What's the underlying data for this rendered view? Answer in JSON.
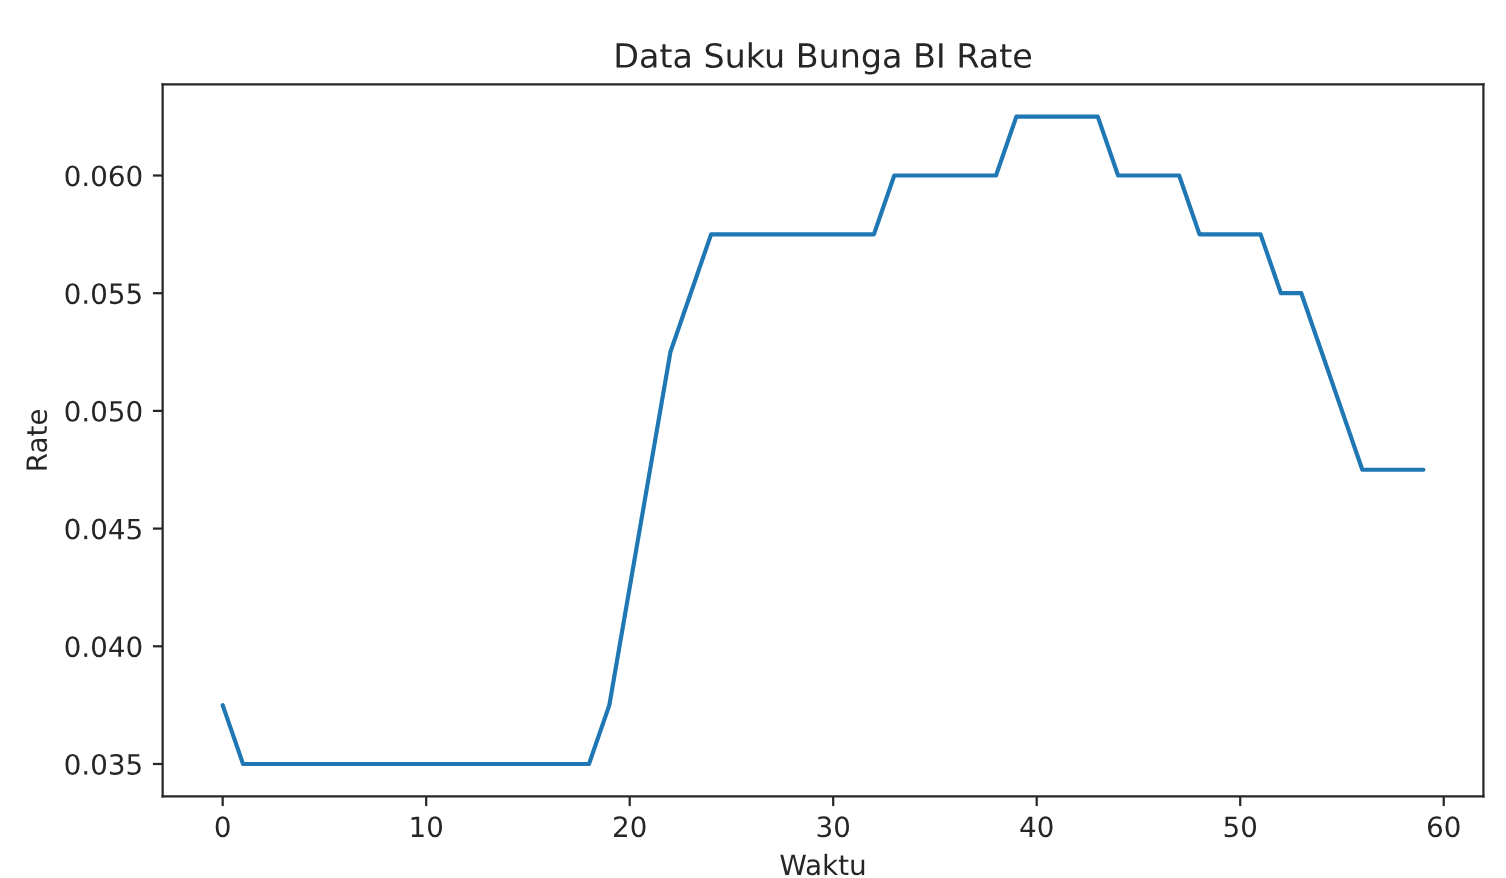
{
  "chart_data": {
    "type": "line",
    "title": "Data Suku Bunga BI Rate",
    "xlabel": "Waktu",
    "ylabel": "Rate",
    "x": [
      0,
      1,
      2,
      3,
      4,
      5,
      6,
      7,
      8,
      9,
      10,
      11,
      12,
      13,
      14,
      15,
      16,
      17,
      18,
      19,
      20,
      21,
      22,
      23,
      24,
      25,
      26,
      27,
      28,
      29,
      30,
      31,
      32,
      33,
      34,
      35,
      36,
      37,
      38,
      39,
      40,
      41,
      42,
      43,
      44,
      45,
      46,
      47,
      48,
      49,
      50,
      51,
      52,
      53,
      54,
      55,
      56,
      57,
      58,
      59
    ],
    "series": [
      {
        "color": "#1f77b4",
        "values": [
          0.0375,
          0.035,
          0.035,
          0.035,
          0.035,
          0.035,
          0.035,
          0.035,
          0.035,
          0.035,
          0.035,
          0.035,
          0.035,
          0.035,
          0.035,
          0.035,
          0.035,
          0.035,
          0.035,
          0.0375,
          0.0425,
          0.0475,
          0.0525,
          0.055,
          0.0575,
          0.0575,
          0.0575,
          0.0575,
          0.0575,
          0.0575,
          0.0575,
          0.0575,
          0.0575,
          0.06,
          0.06,
          0.06,
          0.06,
          0.06,
          0.06,
          0.0625,
          0.0625,
          0.0625,
          0.0625,
          0.0625,
          0.06,
          0.06,
          0.06,
          0.06,
          0.0575,
          0.0575,
          0.0575,
          0.0575,
          0.055,
          0.055,
          0.0525,
          0.05,
          0.0475,
          0.0475,
          0.0475,
          0.0475
        ]
      }
    ],
    "xlim": [
      -2.95,
      61.95
    ],
    "ylim": [
      0.033625,
      0.063875
    ],
    "xticks": [
      0,
      10,
      20,
      30,
      40,
      50,
      60
    ],
    "yticks": [
      0.035,
      {
        "value": 0.04,
        "label": "0.040"
      },
      0.045,
      {
        "value": 0.05,
        "label": "0.050"
      },
      0.055,
      {
        "value": 0.06,
        "label": "0.060"
      }
    ],
    "grid": false,
    "legend": false,
    "marker": "none",
    "line_style": "solid"
  }
}
